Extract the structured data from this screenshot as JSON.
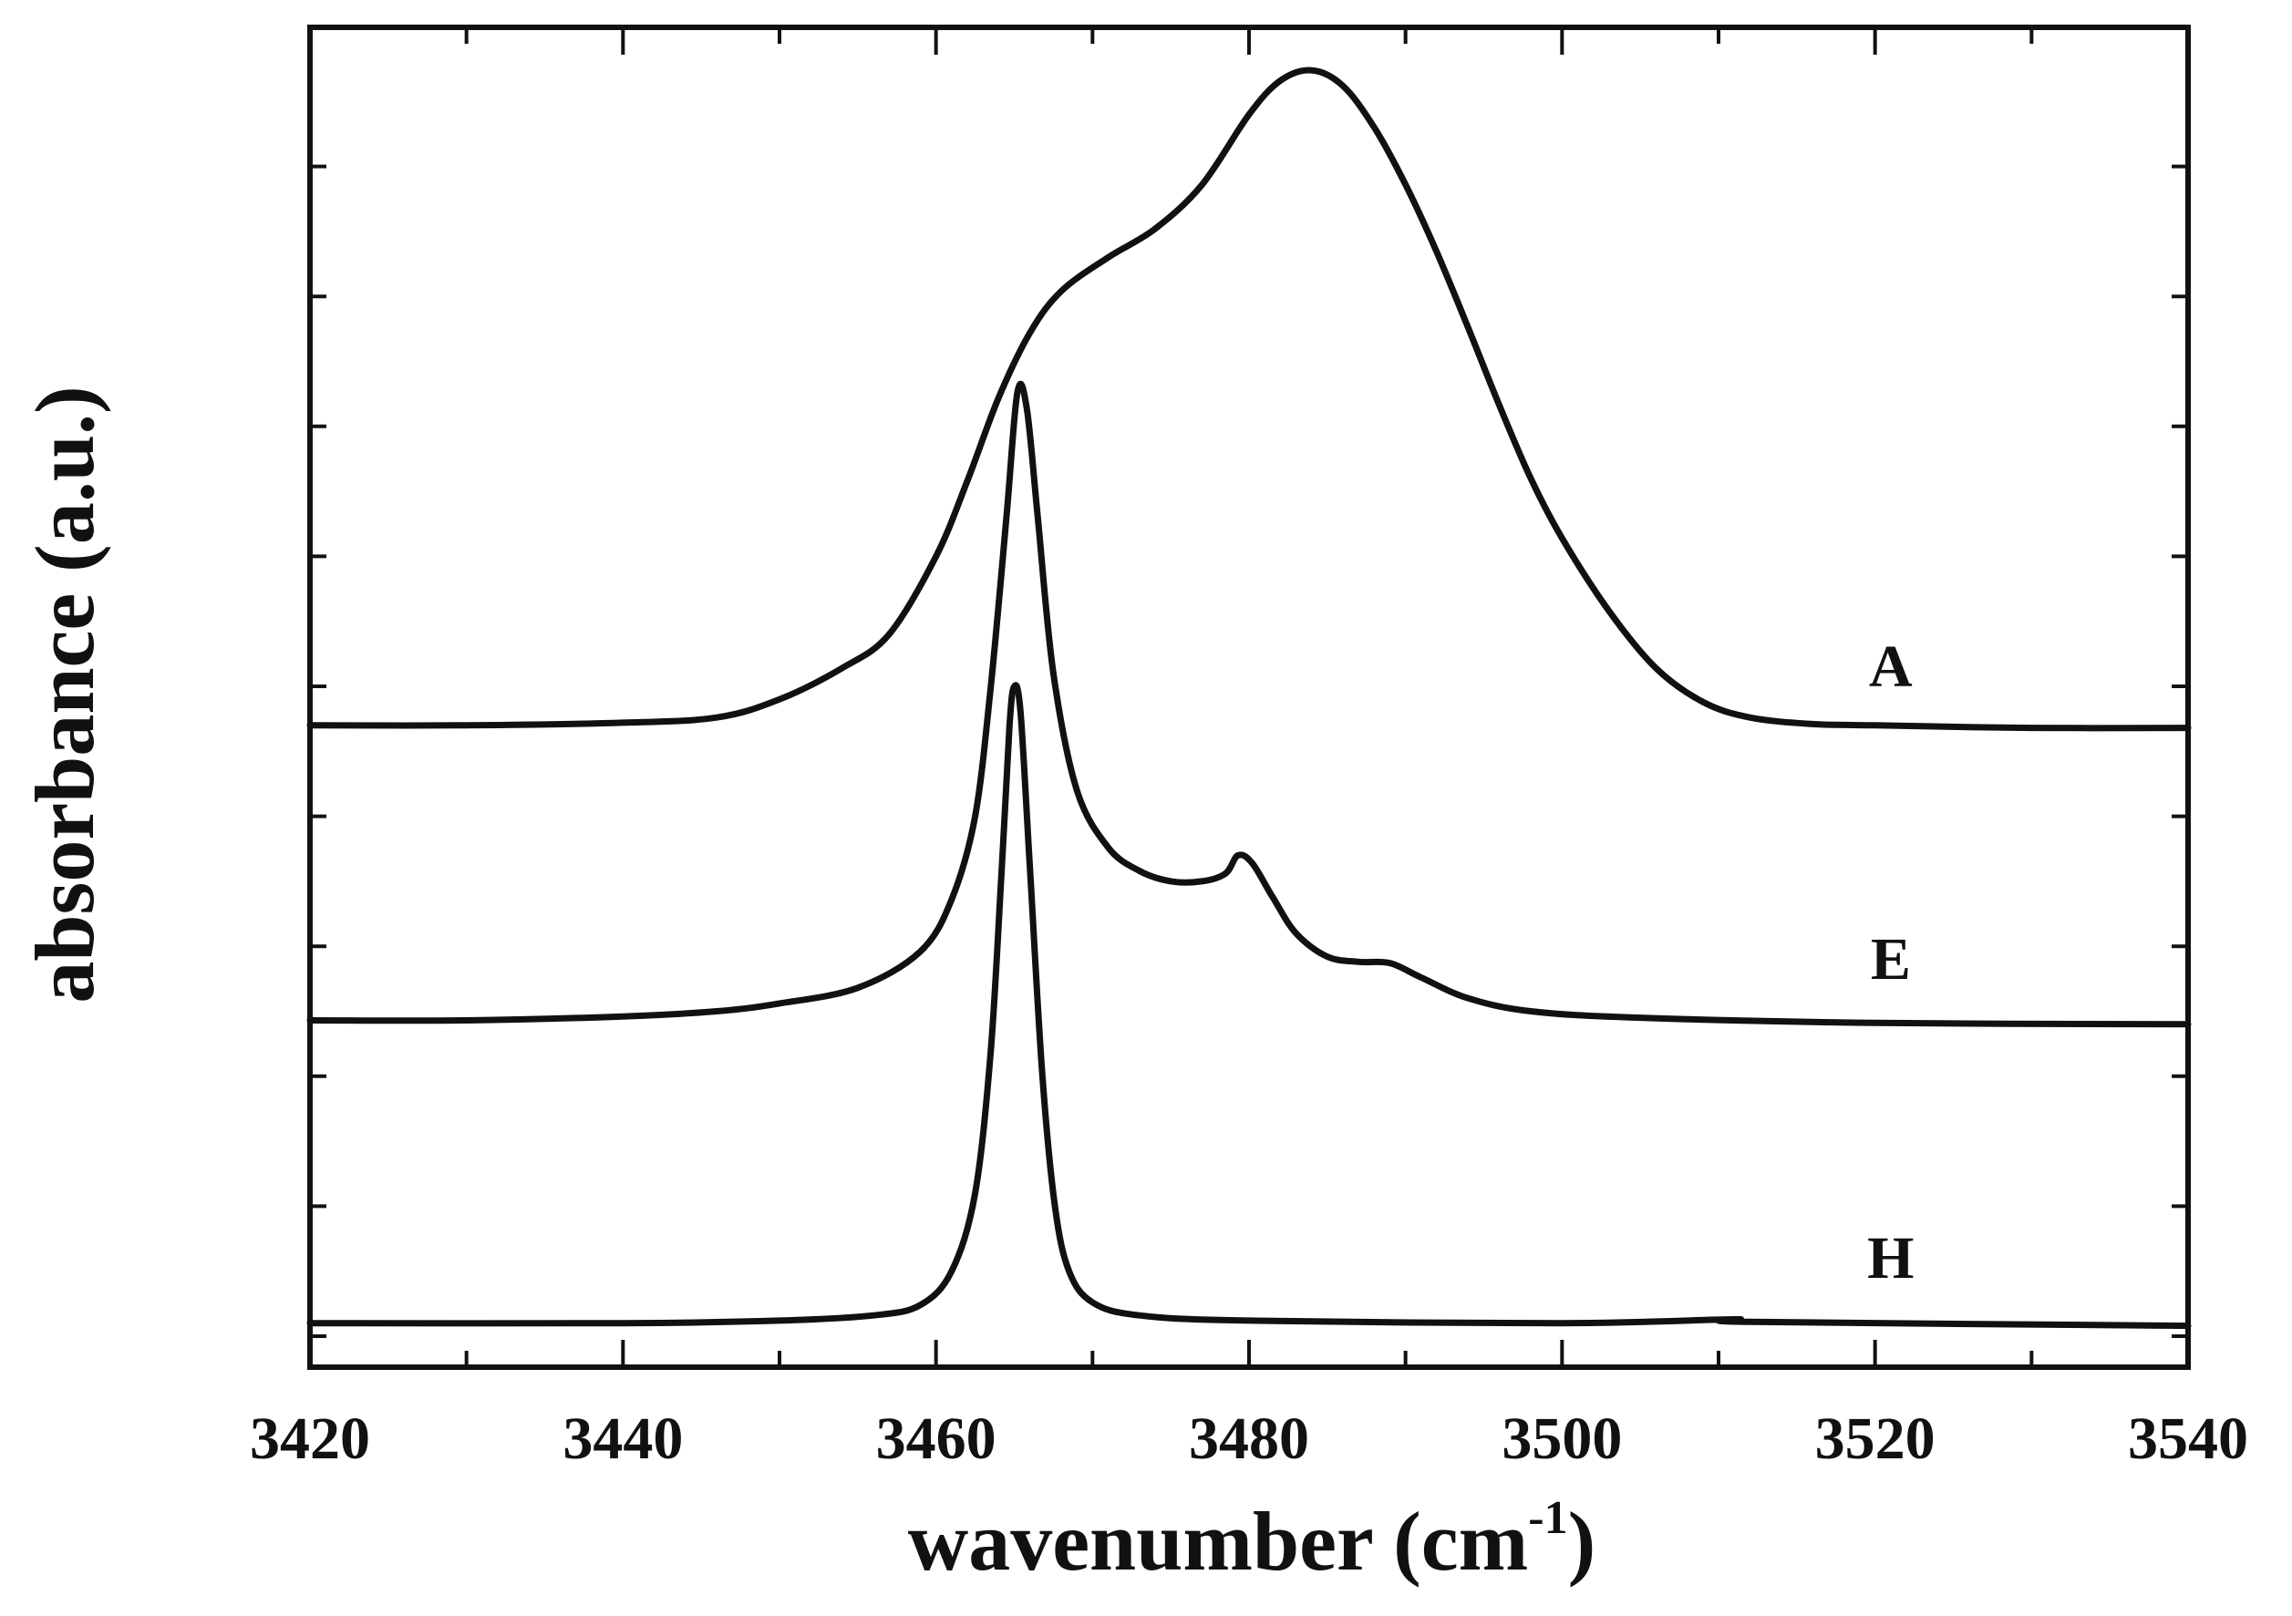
{
  "chart_data": {
    "type": "line",
    "title": "",
    "xlabel": "wavenumber (cm",
    "xlabel_superscript": "-1",
    "xlabel_close": ")",
    "ylabel": "absorbance (a.u.)",
    "xlim": [
      3420,
      3540
    ],
    "ylim": [
      0,
      10
    ],
    "x_ticks": [
      3420,
      3440,
      3460,
      3480,
      3500,
      3520,
      3540
    ],
    "x_tick_labels": [
      "3420",
      "3440",
      "3460",
      "3480",
      "3500",
      "3520",
      "3540"
    ],
    "x_minor_ticks": [
      3430,
      3450,
      3470,
      3490,
      3510,
      3530
    ],
    "y_ticks": [
      0.0,
      1.0,
      2.0,
      3.0,
      4.0,
      5.0,
      6.0,
      7.0,
      8.0,
      9.0
    ],
    "grid": false,
    "legend": "none",
    "series": [
      {
        "name": "A",
        "baseline": 4.7,
        "points": [
          [
            3420,
            4.7
          ],
          [
            3430,
            4.7
          ],
          [
            3440,
            4.72
          ],
          [
            3446,
            4.76
          ],
          [
            3450,
            4.9
          ],
          [
            3454,
            5.14
          ],
          [
            3457,
            5.4
          ],
          [
            3460,
            6.0
          ],
          [
            3462,
            6.58
          ],
          [
            3464,
            7.22
          ],
          [
            3466,
            7.72
          ],
          [
            3468,
            8.04
          ],
          [
            3471,
            8.3
          ],
          [
            3474,
            8.52
          ],
          [
            3477,
            8.86
          ],
          [
            3480,
            9.4
          ],
          [
            3482,
            9.66
          ],
          [
            3484,
            9.74
          ],
          [
            3486,
            9.62
          ],
          [
            3488,
            9.3
          ],
          [
            3490,
            8.86
          ],
          [
            3492,
            8.34
          ],
          [
            3494,
            7.76
          ],
          [
            3496,
            7.16
          ],
          [
            3498,
            6.6
          ],
          [
            3500,
            6.14
          ],
          [
            3503,
            5.58
          ],
          [
            3506,
            5.14
          ],
          [
            3509,
            4.88
          ],
          [
            3512,
            4.76
          ],
          [
            3516,
            4.71
          ],
          [
            3520,
            4.7
          ],
          [
            3530,
            4.68
          ],
          [
            3540,
            4.68
          ]
        ]
      },
      {
        "name": "E",
        "baseline": 2.43,
        "points": [
          [
            3420,
            2.43
          ],
          [
            3430,
            2.43
          ],
          [
            3440,
            2.46
          ],
          [
            3446,
            2.5
          ],
          [
            3450,
            2.56
          ],
          [
            3455,
            2.68
          ],
          [
            3459,
            2.96
          ],
          [
            3461,
            3.36
          ],
          [
            3462.5,
            4.0
          ],
          [
            3463.5,
            5.0
          ],
          [
            3464.5,
            6.3
          ],
          [
            3465.2,
            7.26
          ],
          [
            3465.8,
            7.14
          ],
          [
            3466.5,
            6.3
          ],
          [
            3467.5,
            5.1
          ],
          [
            3469,
            4.2
          ],
          [
            3471,
            3.76
          ],
          [
            3473,
            3.58
          ],
          [
            3475,
            3.5
          ],
          [
            3477,
            3.5
          ],
          [
            3478.5,
            3.56
          ],
          [
            3479.3,
            3.7
          ],
          [
            3480.2,
            3.64
          ],
          [
            3481.5,
            3.38
          ],
          [
            3483,
            3.1
          ],
          [
            3485,
            2.92
          ],
          [
            3487,
            2.88
          ],
          [
            3489,
            2.87
          ],
          [
            3491,
            2.76
          ],
          [
            3494,
            2.6
          ],
          [
            3498,
            2.5
          ],
          [
            3505,
            2.45
          ],
          [
            3520,
            2.41
          ],
          [
            3540,
            2.4
          ]
        ]
      },
      {
        "name": "H",
        "baseline": 0.1,
        "points": [
          [
            3420,
            0.1
          ],
          [
            3440,
            0.1
          ],
          [
            3450,
            0.12
          ],
          [
            3456,
            0.16
          ],
          [
            3459,
            0.24
          ],
          [
            3461,
            0.5
          ],
          [
            3462.5,
            1.1
          ],
          [
            3463.5,
            2.2
          ],
          [
            3464.2,
            3.6
          ],
          [
            3464.7,
            4.7
          ],
          [
            3465.0,
            5.0
          ],
          [
            3465.4,
            4.8
          ],
          [
            3466,
            3.6
          ],
          [
            3466.8,
            2.0
          ],
          [
            3467.6,
            1.0
          ],
          [
            3468.5,
            0.5
          ],
          [
            3470,
            0.26
          ],
          [
            3473,
            0.16
          ],
          [
            3480,
            0.12
          ],
          [
            3500,
            0.1
          ],
          [
            3511,
            0.13
          ],
          [
            3512,
            0.11
          ],
          [
            3540,
            0.08
          ]
        ]
      }
    ],
    "curve_labels": [
      {
        "text": "A",
        "x": 3521,
        "y": 5.0
      },
      {
        "text": "E",
        "x": 3521,
        "y": 2.75
      },
      {
        "text": "H",
        "x": 3521,
        "y": 0.45
      }
    ]
  }
}
